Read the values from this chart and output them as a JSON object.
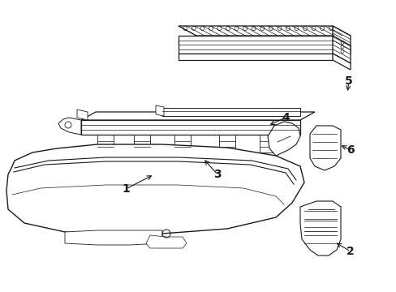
{
  "background_color": "#ffffff",
  "line_color": "#1a1a1a",
  "fig_width": 4.89,
  "fig_height": 3.6,
  "dpi": 100,
  "label_fontsize": 10,
  "label_bold": true
}
